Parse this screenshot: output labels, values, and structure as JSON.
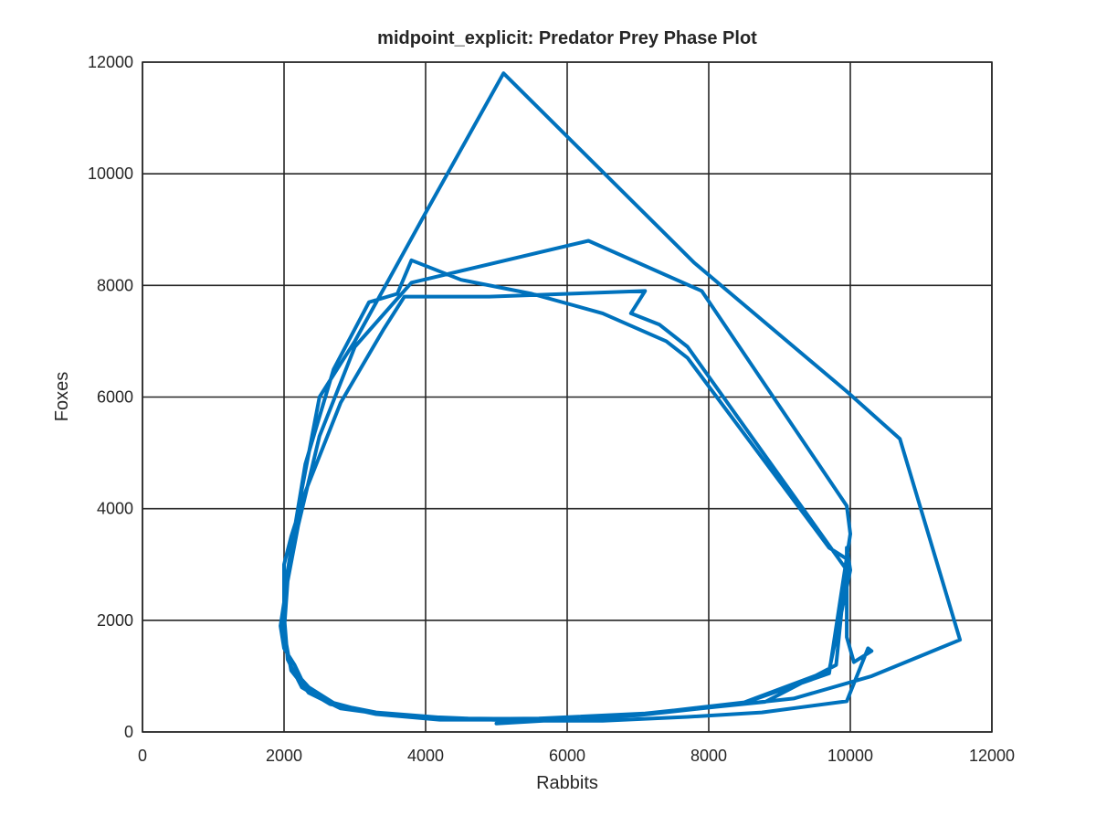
{
  "chart_data": {
    "type": "line",
    "title": "midpoint_explicit: Predator Prey Phase Plot",
    "xlabel": "Rabbits",
    "ylabel": "Foxes",
    "xlim": [
      0,
      12000
    ],
    "ylim": [
      0,
      12000
    ],
    "xticks": [
      0,
      2000,
      4000,
      6000,
      8000,
      10000,
      12000
    ],
    "yticks": [
      0,
      2000,
      4000,
      6000,
      8000,
      10000,
      12000
    ],
    "xtick_labels": [
      "0",
      "2000",
      "4000",
      "6000",
      "8000",
      "10000",
      "12000"
    ],
    "ytick_labels": [
      "0",
      "2000",
      "4000",
      "6000",
      "8000",
      "10000",
      "12000"
    ],
    "grid": true,
    "legend": "none",
    "color": "#0072BD",
    "series": [
      {
        "x": [
          5000,
          7000,
          9200,
          10300,
          11550,
          10700,
          9950,
          7800,
          5100,
          4000,
          3000,
          2500,
          2200,
          1950,
          2000,
          2150,
          2300,
          2700,
          3300,
          4300,
          5300,
          6500,
          7700,
          8750,
          9950,
          10250,
          10300,
          10050,
          9950,
          9950,
          10000,
          9700,
          8500,
          7200,
          6000,
          5100,
          4200,
          3300,
          2700,
          2350,
          2100,
          2000,
          2000,
          2300,
          2700,
          3200,
          3600,
          3800,
          4500,
          5500,
          6500,
          7400,
          7700,
          9700,
          9950,
          9800,
          8800,
          7000,
          5700,
          4600,
          3500,
          2800,
          2350,
          2100,
          2000,
          2050,
          2200,
          2500,
          3000,
          3800,
          6300,
          7900,
          9950,
          10000,
          9700,
          8500,
          7100,
          5600,
          4400,
          3300,
          2650,
          2250,
          2050,
          2000,
          2000,
          2100,
          2300,
          2800,
          3400,
          3700,
          4900,
          7100,
          6900,
          7300,
          7700,
          9950,
          9950
        ],
        "y": [
          150,
          300,
          600,
          1000,
          1650,
          5250,
          6100,
          8400,
          11800,
          9300,
          7000,
          6000,
          4000,
          1900,
          1500,
          1200,
          800,
          500,
          350,
          250,
          200,
          200,
          270,
          350,
          550,
          1500,
          1450,
          1250,
          1700,
          3300,
          2900,
          1100,
          530,
          340,
          240,
          220,
          220,
          320,
          520,
          800,
          1150,
          1600,
          2500,
          4800,
          6500,
          7700,
          7850,
          8450,
          8100,
          7850,
          7500,
          7000,
          6700,
          3300,
          3100,
          1200,
          540,
          310,
          230,
          240,
          300,
          420,
          700,
          1100,
          1800,
          2700,
          3700,
          5300,
          6900,
          8050,
          8800,
          7900,
          4050,
          3550,
          1050,
          520,
          330,
          240,
          230,
          320,
          500,
          800,
          1300,
          2100,
          3000,
          3500,
          4300,
          5900,
          7200,
          7800,
          7800,
          7900,
          7500,
          7300,
          6900,
          2900,
          3000
        ]
      }
    ]
  }
}
